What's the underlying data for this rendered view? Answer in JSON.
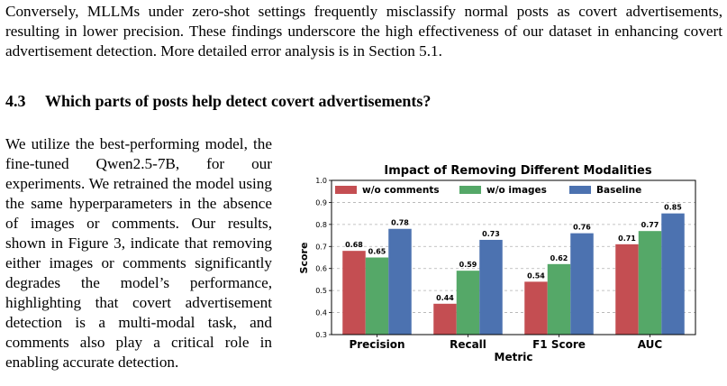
{
  "intro_paragraph": "Conversely, MLLMs under zero-shot settings frequently misclassify normal posts as covert advertisements, resulting in lower precision. These findings underscore the high effectiveness of our dataset in enhancing covert advertisement detection. More detailed error analysis is in Section 5.1.",
  "section": {
    "number": "4.3",
    "title": "Which parts of posts help detect covert advertisements?"
  },
  "body_paragraph": "We utilize the best-performing model, the fine-tuned Qwen2.5-7B, for our experiments. We retrained the model using the same hyperparameters in the absence of images or comments. Our results, shown in Figure 3, indicate that removing either images or comments significantly degrades the model’s performance, highlighting that covert advertisement detection is a multi-modal task, and comments also play a critical role in enabling accurate detection.",
  "chart_data": {
    "type": "bar",
    "title": "Impact of Removing Different Modalities",
    "xlabel": "Metric",
    "ylabel": "Score",
    "categories": [
      "Precision",
      "Recall",
      "F1 Score",
      "AUC"
    ],
    "series": [
      {
        "name": "w/o comments",
        "values": [
          0.68,
          0.44,
          0.54,
          0.71
        ],
        "color": "#c44e52"
      },
      {
        "name": "w/o images",
        "values": [
          0.65,
          0.59,
          0.62,
          0.77
        ],
        "color": "#55a868"
      },
      {
        "name": "Baseline",
        "values": [
          0.78,
          0.73,
          0.76,
          0.85
        ],
        "color": "#4c72b0"
      }
    ],
    "ylim": [
      0.3,
      1.0
    ],
    "yticks": [
      "0.3",
      "0.4",
      "0.5",
      "0.6",
      "0.7",
      "0.8",
      "0.9",
      "1.0"
    ],
    "grid": "y-dashed",
    "legend": "top"
  }
}
